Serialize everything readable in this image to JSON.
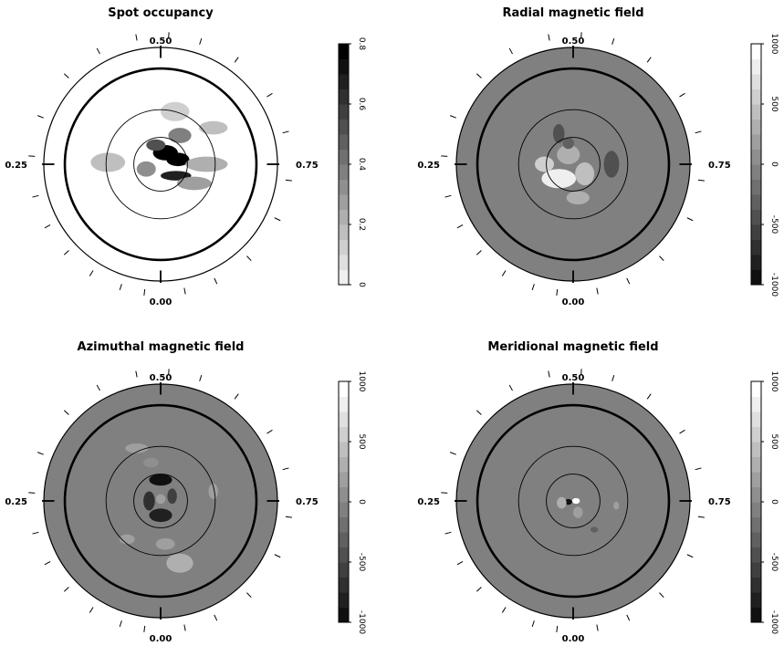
{
  "chart_data": [
    {
      "type": "heatmap",
      "projection": "polar",
      "title": "Spot occupancy",
      "phase_labels": {
        "top": "0.50",
        "left": "0.25",
        "right": "0.75",
        "bottom": "0.00"
      },
      "colorbar": {
        "range": [
          0,
          0.8
        ],
        "ticks": [
          "0",
          "0.2",
          "0.4",
          "0.6",
          "0.8"
        ],
        "scale": "white-to-black"
      },
      "background": "#ffffff",
      "blobs": [
        {
          "x": 0.05,
          "y": 0.12,
          "rx": 0.13,
          "ry": 0.08,
          "v": 0.8
        },
        {
          "x": 0.18,
          "y": 0.05,
          "rx": 0.12,
          "ry": 0.07,
          "v": 0.8
        },
        {
          "x": 0.16,
          "y": -0.12,
          "rx": 0.16,
          "ry": 0.05,
          "v": 0.7
        },
        {
          "x": -0.05,
          "y": 0.2,
          "rx": 0.1,
          "ry": 0.06,
          "v": 0.55
        },
        {
          "x": 0.2,
          "y": 0.3,
          "rx": 0.12,
          "ry": 0.08,
          "v": 0.4
        },
        {
          "x": -0.55,
          "y": 0.02,
          "rx": 0.18,
          "ry": 0.1,
          "v": 0.2
        },
        {
          "x": 0.48,
          "y": 0.0,
          "rx": 0.22,
          "ry": 0.08,
          "v": 0.25
        },
        {
          "x": 0.35,
          "y": -0.2,
          "rx": 0.18,
          "ry": 0.07,
          "v": 0.3
        },
        {
          "x": -0.15,
          "y": -0.05,
          "rx": 0.1,
          "ry": 0.08,
          "v": 0.35
        },
        {
          "x": 0.15,
          "y": 0.55,
          "rx": 0.15,
          "ry": 0.1,
          "v": 0.15
        },
        {
          "x": 0.55,
          "y": 0.38,
          "rx": 0.15,
          "ry": 0.07,
          "v": 0.2
        }
      ],
      "observation_phases": [
        0.02,
        0.05,
        0.09,
        0.13,
        0.17,
        0.21,
        0.26,
        0.31,
        0.37,
        0.42,
        0.47,
        0.51,
        0.55,
        0.6,
        0.66,
        0.71,
        0.77,
        0.82,
        0.88,
        0.93,
        0.97
      ]
    },
    {
      "type": "heatmap",
      "projection": "polar",
      "title": "Radial magnetic field",
      "phase_labels": {
        "top": "0.50",
        "left": "0.25",
        "right": "0.75",
        "bottom": "0.00"
      },
      "colorbar": {
        "range": [
          -1000,
          1000
        ],
        "ticks": [
          "-1000",
          "-500",
          "0",
          "500",
          "1000"
        ],
        "scale": "black-to-white"
      },
      "background_value": 0,
      "blobs": [
        {
          "x": -0.15,
          "y": -0.15,
          "rx": 0.18,
          "ry": 0.1,
          "v": 900
        },
        {
          "x": -0.3,
          "y": 0.0,
          "rx": 0.1,
          "ry": 0.08,
          "v": 650
        },
        {
          "x": 0.12,
          "y": -0.1,
          "rx": 0.1,
          "ry": 0.12,
          "v": 450
        },
        {
          "x": 0.05,
          "y": -0.35,
          "rx": 0.12,
          "ry": 0.07,
          "v": 400
        },
        {
          "x": -0.05,
          "y": 0.1,
          "rx": 0.12,
          "ry": 0.1,
          "v": 350
        },
        {
          "x": -0.15,
          "y": 0.32,
          "rx": 0.06,
          "ry": 0.1,
          "v": -400
        },
        {
          "x": -0.05,
          "y": 0.22,
          "rx": 0.06,
          "ry": 0.06,
          "v": -300
        },
        {
          "x": 0.4,
          "y": 0.0,
          "rx": 0.08,
          "ry": 0.14,
          "v": -350
        }
      ],
      "observation_phases": [
        0.02,
        0.05,
        0.09,
        0.13,
        0.17,
        0.21,
        0.26,
        0.31,
        0.37,
        0.42,
        0.47,
        0.51,
        0.55,
        0.6,
        0.66,
        0.71,
        0.77,
        0.82,
        0.88,
        0.93,
        0.97
      ]
    },
    {
      "type": "heatmap",
      "projection": "polar",
      "title": "Azimuthal magnetic field",
      "phase_labels": {
        "top": "0.50",
        "left": "0.25",
        "right": "0.75",
        "bottom": "0.00"
      },
      "colorbar": {
        "range": [
          -1000,
          1000
        ],
        "ticks": [
          "-1000",
          "-500",
          "0",
          "500",
          "1000"
        ],
        "scale": "black-to-white"
      },
      "background_value": 0,
      "blobs": [
        {
          "x": 0.0,
          "y": 0.22,
          "rx": 0.12,
          "ry": 0.06,
          "v": -900
        },
        {
          "x": 0.0,
          "y": -0.15,
          "rx": 0.12,
          "ry": 0.07,
          "v": -800
        },
        {
          "x": -0.12,
          "y": 0.0,
          "rx": 0.06,
          "ry": 0.1,
          "v": -600
        },
        {
          "x": 0.12,
          "y": 0.05,
          "rx": 0.05,
          "ry": 0.08,
          "v": -500
        },
        {
          "x": 0.0,
          "y": 0.02,
          "rx": 0.05,
          "ry": 0.05,
          "v": 200
        },
        {
          "x": 0.2,
          "y": -0.65,
          "rx": 0.14,
          "ry": 0.1,
          "v": 350
        },
        {
          "x": 0.05,
          "y": -0.45,
          "rx": 0.1,
          "ry": 0.06,
          "v": 250
        },
        {
          "x": -0.25,
          "y": 0.55,
          "rx": 0.12,
          "ry": 0.05,
          "v": 250
        },
        {
          "x": 0.55,
          "y": 0.1,
          "rx": 0.05,
          "ry": 0.08,
          "v": 250
        },
        {
          "x": -0.35,
          "y": -0.4,
          "rx": 0.08,
          "ry": 0.05,
          "v": 200
        },
        {
          "x": -0.1,
          "y": 0.4,
          "rx": 0.08,
          "ry": 0.05,
          "v": 150
        }
      ],
      "observation_phases": [
        0.02,
        0.05,
        0.09,
        0.13,
        0.17,
        0.21,
        0.26,
        0.31,
        0.37,
        0.42,
        0.47,
        0.51,
        0.55,
        0.6,
        0.66,
        0.71,
        0.77,
        0.82,
        0.88,
        0.93,
        0.97
      ]
    },
    {
      "type": "heatmap",
      "projection": "polar",
      "title": "Meridional magnetic field",
      "phase_labels": {
        "top": "0.50",
        "left": "0.25",
        "right": "0.75",
        "bottom": "0.00"
      },
      "colorbar": {
        "range": [
          -1000,
          1000
        ],
        "ticks": [
          "-1000",
          "-500",
          "0",
          "500",
          "1000"
        ],
        "scale": "black-to-white"
      },
      "background_value": 0,
      "blobs": [
        {
          "x": 0.03,
          "y": 0.0,
          "rx": 0.04,
          "ry": 0.03,
          "v": 950
        },
        {
          "x": -0.05,
          "y": -0.01,
          "rx": 0.04,
          "ry": 0.03,
          "v": -900
        },
        {
          "x": -0.12,
          "y": -0.02,
          "rx": 0.05,
          "ry": 0.06,
          "v": 350
        },
        {
          "x": 0.05,
          "y": -0.12,
          "rx": 0.05,
          "ry": 0.06,
          "v": 300
        },
        {
          "x": 0.22,
          "y": -0.3,
          "rx": 0.04,
          "ry": 0.03,
          "v": -300
        },
        {
          "x": 0.45,
          "y": -0.05,
          "rx": 0.03,
          "ry": 0.04,
          "v": 200
        }
      ],
      "observation_phases": [
        0.02,
        0.05,
        0.09,
        0.13,
        0.17,
        0.21,
        0.26,
        0.31,
        0.37,
        0.42,
        0.47,
        0.51,
        0.55,
        0.6,
        0.66,
        0.71,
        0.77,
        0.82,
        0.88,
        0.93,
        0.97
      ]
    }
  ]
}
